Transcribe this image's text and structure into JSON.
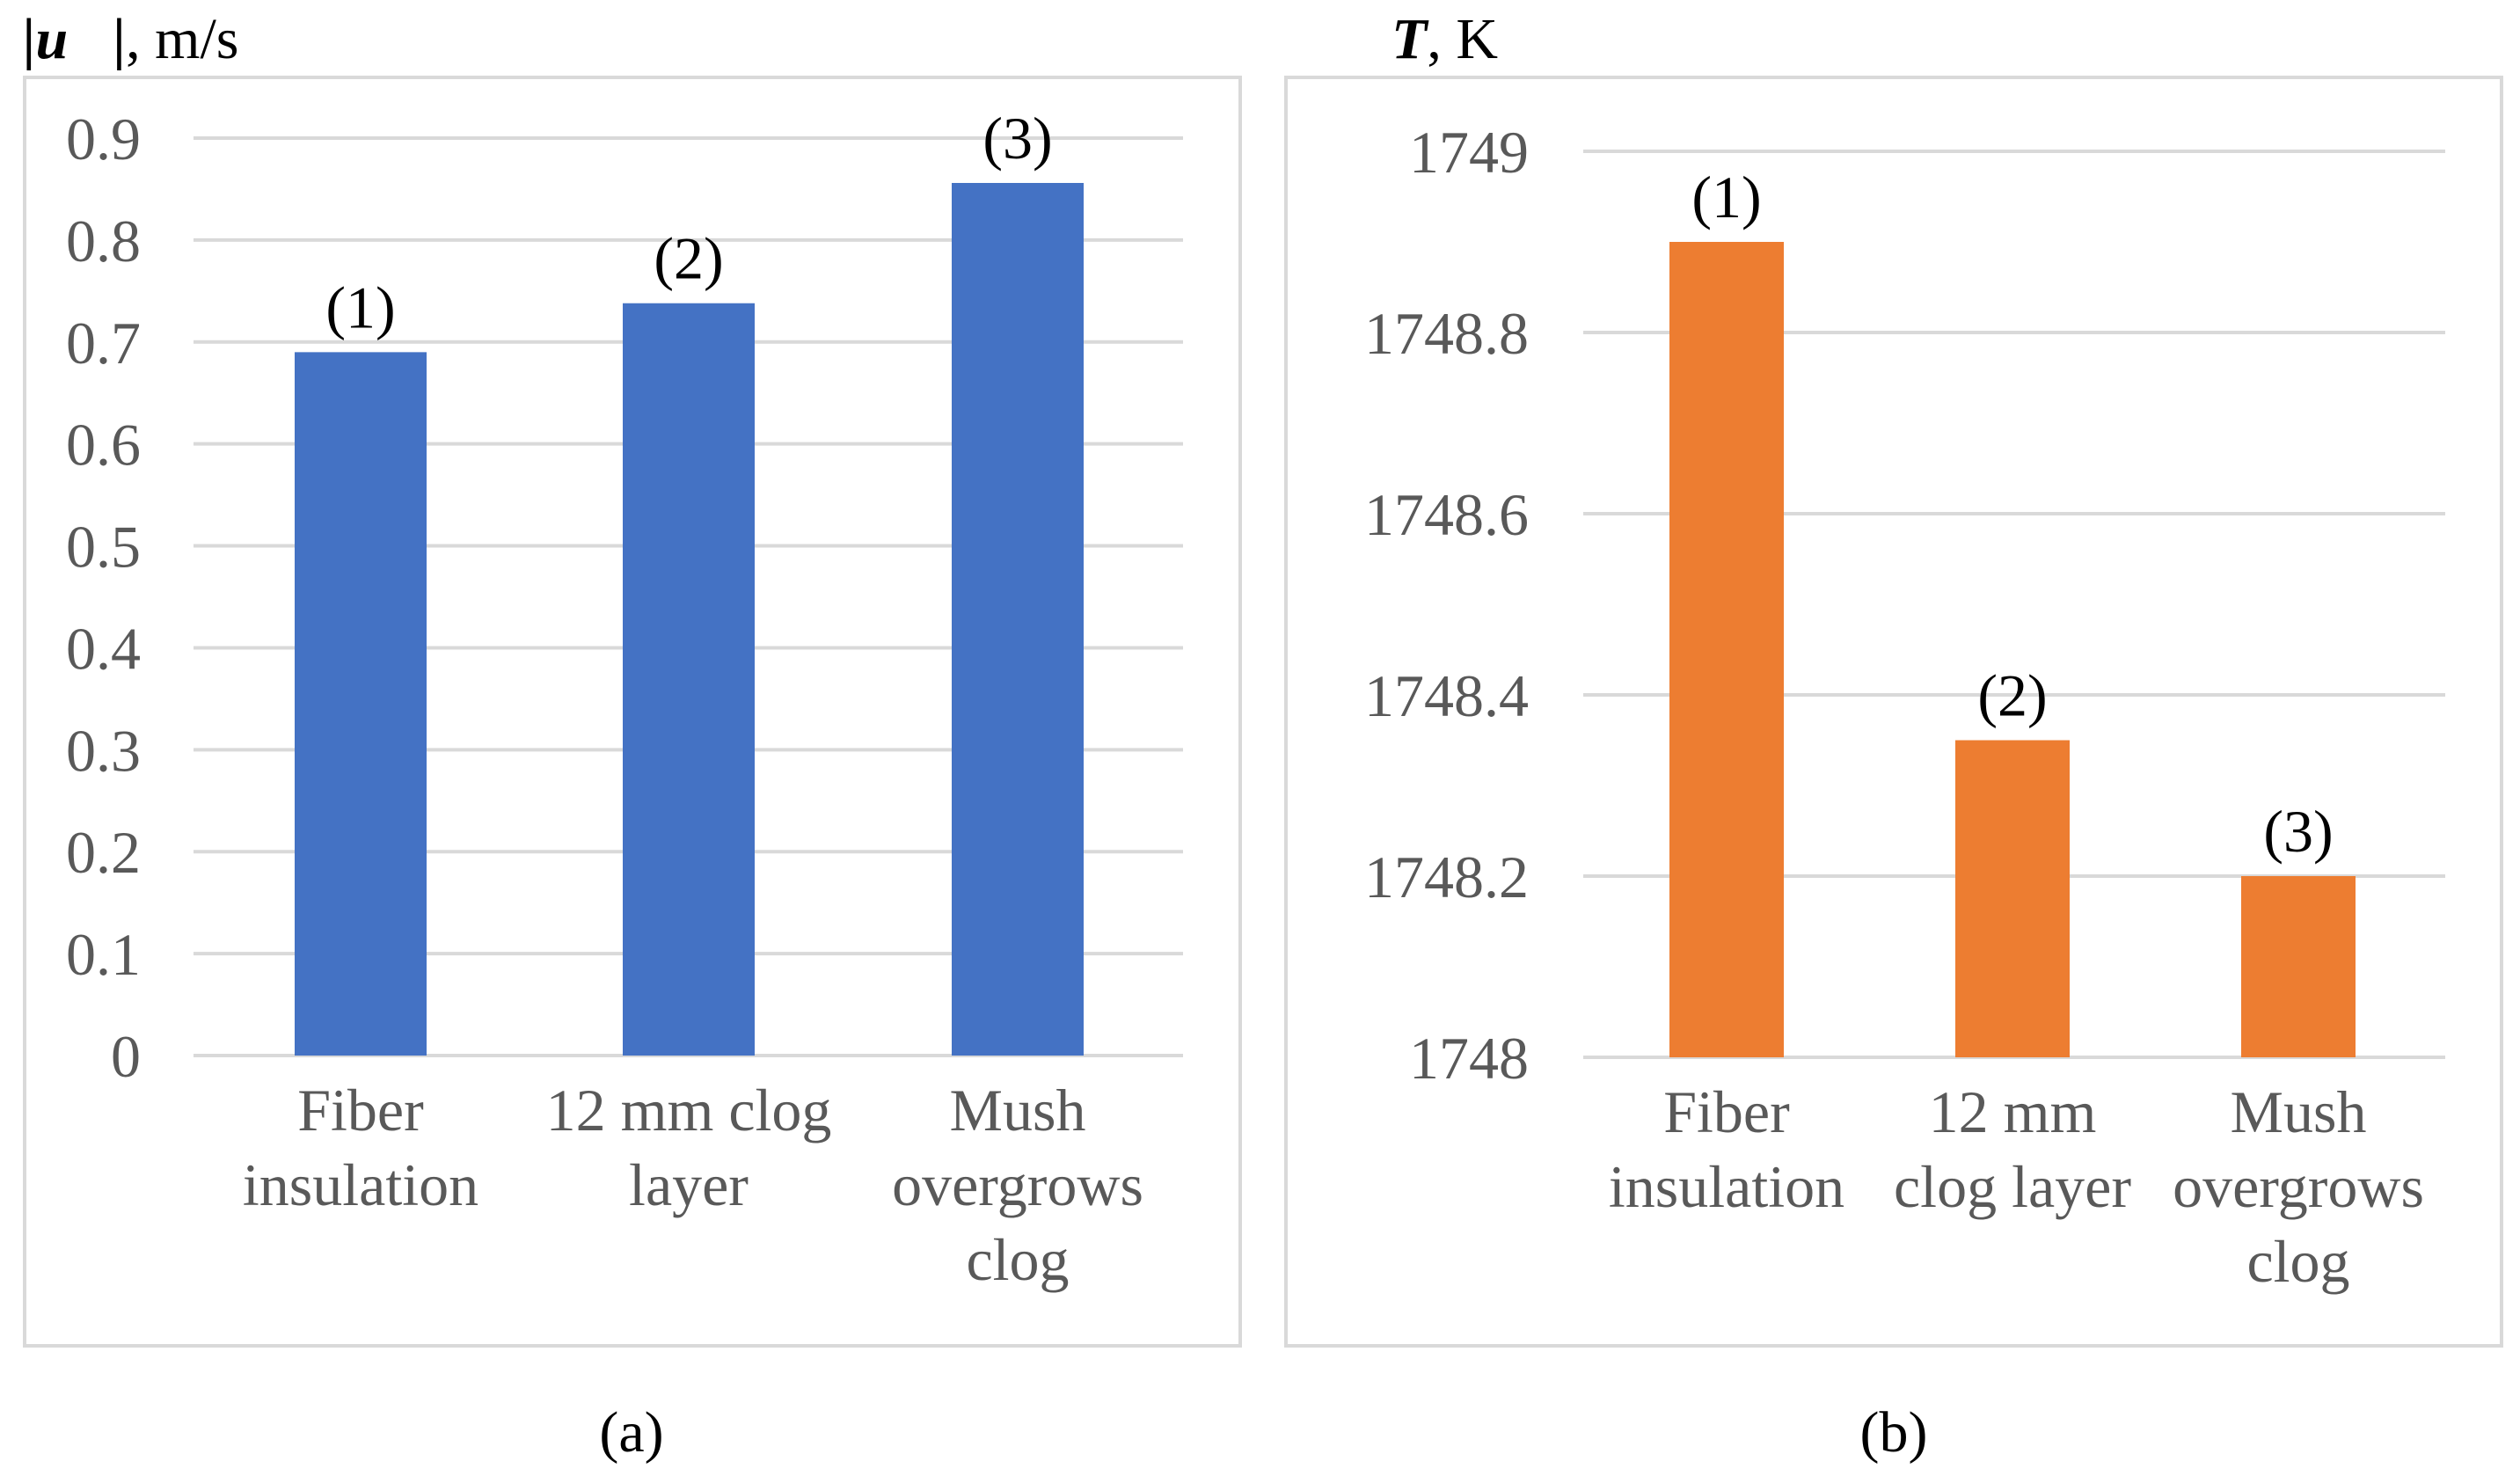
{
  "chart_data": [
    {
      "type": "bar",
      "panel_label": "(a)",
      "ylabel_var": "|u⃗|",
      "ylabel_unit": ", m/s",
      "categories": [
        [
          "Fiber",
          "insulation"
        ],
        [
          "12 mm clog",
          "layer"
        ],
        [
          "Mush",
          "overgrows",
          "clog"
        ]
      ],
      "values": [
        0.69,
        0.738,
        0.856
      ],
      "data_labels": [
        "(1)",
        "(2)",
        "(3)"
      ],
      "ylim": [
        0,
        0.9
      ],
      "yticks": [
        "0",
        "0.1",
        "0.2",
        "0.3",
        "0.4",
        "0.5",
        "0.6",
        "0.7",
        "0.8",
        "0.9"
      ],
      "color": "#4472C4",
      "grid": true
    },
    {
      "type": "bar",
      "panel_label": "(b)",
      "ylabel_var": "T",
      "ylabel_unit": ", K",
      "categories": [
        [
          "Fiber",
          "insulation"
        ],
        [
          "12 mm",
          "clog layer"
        ],
        [
          "Mush",
          "overgrows",
          "clog"
        ]
      ],
      "values": [
        1748.9,
        1748.35,
        1748.2
      ],
      "data_labels": [
        "(1)",
        "(2)",
        "(3)"
      ],
      "ylim": [
        1748,
        1749
      ],
      "yticks": [
        "1748",
        "1748.2",
        "1748.4",
        "1748.6",
        "1748.8",
        "1749"
      ],
      "color": "#ED7D31",
      "grid": true
    }
  ]
}
